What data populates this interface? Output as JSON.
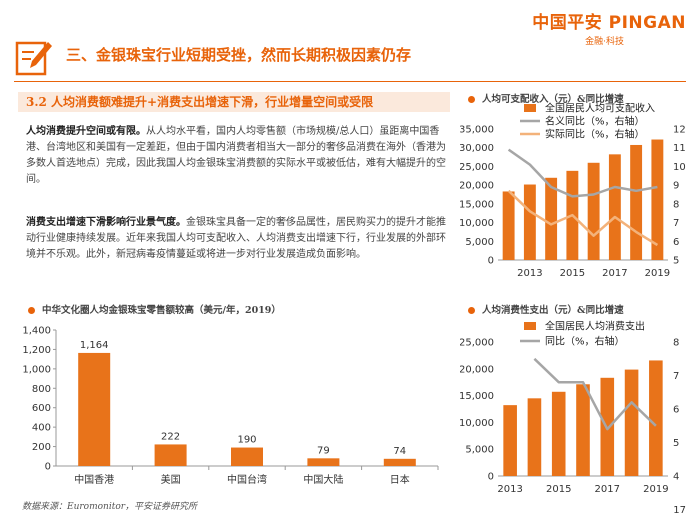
{
  "brand": {
    "name": "中国平安 PINGAN",
    "tagline": "金融·科技"
  },
  "section_title": "三、金银珠宝行业短期受挫，然而长期积极因素仍存",
  "sub_heading": "3.2 人均消费额难提升+消费支出增速下滑，行业增量空间或受限",
  "paragraphs": [
    {
      "lead": "人均消费提升空间或有限。",
      "body": "从人均水平看，国内人均零售额（市场规模/总人口）虽距离中国香港、台湾地区和美国有一定差距，但由于国内消费者相当大一部分的奢侈品消费在海外（香港为多数人首选地点）完成，因此我国人均金银珠宝消费额的实际水平或被低估，难有大幅提升的空间。"
    },
    {
      "lead": "消费支出增速下滑影响行业景气度。",
      "body": "金银珠宝具备一定的奢侈品属性，居民购买力的提升才能推动行业健康持续发展。近年来我国人均可支配收入、人均消费支出增速下行，行业发展的外部环境并不乐观。此外，新冠病毒疫情蔓延或将进一步对行业发展造成负面影响。"
    }
  ],
  "footer": {
    "source": "数据来源：Euromonitor，平安证券研究所",
    "page": "17"
  },
  "chart_data": [
    {
      "type": "bar",
      "title": "中华文化圈人均金银珠宝零售额较高（美元/年，2019）",
      "categories": [
        "中国香港",
        "美国",
        "中国台湾",
        "中国大陆",
        "日本"
      ],
      "values": [
        1164,
        222,
        190,
        79,
        74
      ],
      "data_labels": [
        "1,164",
        "222",
        "190",
        "79",
        "74"
      ],
      "ylim": [
        0,
        1400
      ],
      "yticks": [
        "0",
        "200",
        "400",
        "600",
        "800",
        "1,000",
        "1,200",
        "1,400"
      ],
      "color": "#e8731a"
    },
    {
      "type": "bar+line",
      "title": "人均可支配收入（元）&同比增速",
      "x": [
        2012,
        2013,
        2014,
        2015,
        2016,
        2017,
        2018,
        2019
      ],
      "xticks": [
        "2013",
        "2015",
        "2017",
        "2019"
      ],
      "series": [
        {
          "name": "全国居民人均可支配收入",
          "kind": "bar",
          "axis": "left",
          "values": [
            18311,
            20167,
            21966,
            23821,
            25974,
            28228,
            30733,
            32189
          ],
          "color": "#e8731a"
        },
        {
          "name": "名义同比（%，右轴）",
          "kind": "line",
          "axis": "right",
          "values": [
            10.9,
            10.1,
            8.9,
            8.4,
            8.5,
            8.9,
            8.7,
            8.9
          ],
          "color": "#a6a6a6"
        },
        {
          "name": "实际同比（%，右轴）",
          "kind": "line",
          "axis": "right",
          "values": [
            8.7,
            7.6,
            6.9,
            7.4,
            6.3,
            7.3,
            6.5,
            5.8
          ],
          "color": "#f3b27a"
        }
      ],
      "ylim_left": [
        0,
        35000
      ],
      "yticks_left": [
        "0",
        "5,000",
        "10,000",
        "15,000",
        "20,000",
        "25,000",
        "30,000",
        "35,000"
      ],
      "ylim_right": [
        5,
        12
      ],
      "yticks_right": [
        "5",
        "6",
        "7",
        "8",
        "9",
        "10",
        "11",
        "12"
      ]
    },
    {
      "type": "bar+line",
      "title": "人均消费性支出（元）&同比增速",
      "x": [
        2013,
        2014,
        2015,
        2016,
        2017,
        2018,
        2019
      ],
      "xticks": [
        "2013",
        "2015",
        "2017",
        "2019"
      ],
      "series": [
        {
          "name": "全国居民人均消费支出",
          "kind": "bar",
          "axis": "left",
          "values": [
            13220,
            14491,
            15712,
            17111,
            18322,
            19853,
            21559
          ],
          "color": "#e8731a"
        },
        {
          "name": "同比（%，右轴）",
          "kind": "line",
          "axis": "right",
          "values": [
            null,
            7.5,
            6.8,
            6.8,
            5.4,
            6.2,
            5.5
          ],
          "color": "#a6a6a6"
        }
      ],
      "ylim_left": [
        0,
        25000
      ],
      "yticks_left": [
        "0",
        "5,000",
        "10,000",
        "15,000",
        "20,000",
        "25,000"
      ],
      "ylim_right": [
        4,
        8
      ],
      "yticks_right": [
        "4",
        "5",
        "6",
        "7",
        "8"
      ]
    }
  ]
}
